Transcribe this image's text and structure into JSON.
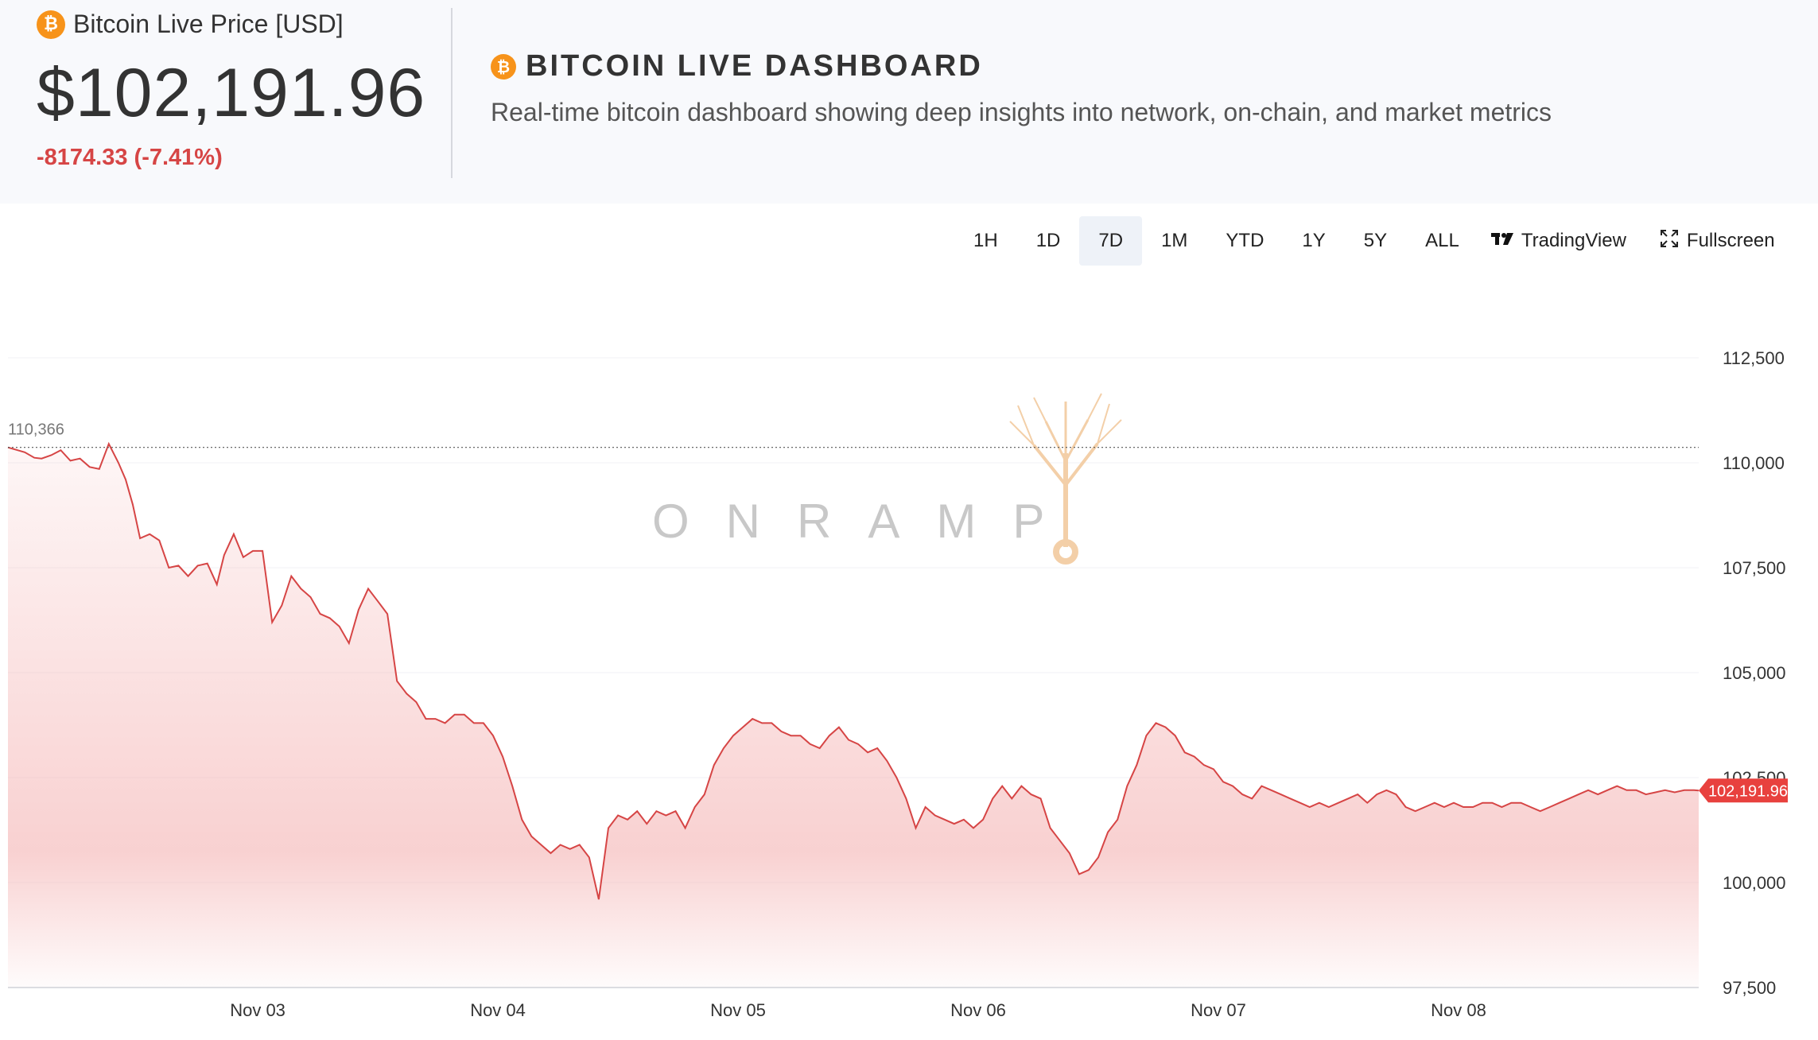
{
  "price_widget": {
    "logo_symbol": "₿",
    "title": "Bitcoin Live Price [USD]",
    "price": "$102,191.96",
    "change": "-8174.33 (-7.41%)"
  },
  "dashboard": {
    "logo_symbol": "₿",
    "title": "BITCOIN LIVE DASHBOARD",
    "subtitle": "Real-time bitcoin dashboard showing deep insights into network, on-chain, and market metrics"
  },
  "toolbar": {
    "ranges": [
      "1H",
      "1D",
      "7D",
      "1M",
      "YTD",
      "1Y",
      "5Y",
      "ALL"
    ],
    "active_range": "7D",
    "tradingview_label": "TradingView",
    "tradingview_icon": "tradingview-logo-icon",
    "fullscreen_label": "Fullscreen",
    "fullscreen_icon": "fullscreen-expand-icon"
  },
  "chart_data": {
    "type": "area",
    "title": "",
    "x_tick_labels": [
      "Nov 03",
      "Nov 04",
      "Nov 05",
      "Nov 06",
      "Nov 07",
      "Nov 08"
    ],
    "y_tick_labels": [
      "112,500",
      "110,000",
      "107,500",
      "105,000",
      "102,500",
      "100,000",
      "97,500"
    ],
    "y_ticks": [
      112500,
      110000,
      107500,
      105000,
      102500,
      100000,
      97500
    ],
    "ylim": [
      97500,
      114000
    ],
    "x_range_days": [
      -1.04,
      6.0
    ],
    "start_value": 110366,
    "start_label": "110,366",
    "last_value": 102191.96,
    "last_label": "102,191.96",
    "watermark": "ONRAMP",
    "colors": {
      "line": "#d64545",
      "up_line": "#26a69a",
      "fill": "#f5b8b8",
      "price_tag": "#e8413e",
      "watermark_tree": "#f3cfa8"
    },
    "series": [
      {
        "points": [
          [
            -1.04,
            110366
          ],
          [
            -1.0,
            110300
          ],
          [
            -0.97,
            110250
          ],
          [
            -0.93,
            110120
          ],
          [
            -0.9,
            110100
          ],
          [
            -0.86,
            110180
          ],
          [
            -0.82,
            110300
          ],
          [
            -0.78,
            110050
          ],
          [
            -0.74,
            110100
          ],
          [
            -0.7,
            109900
          ],
          [
            -0.66,
            109850
          ],
          [
            -0.62,
            110450
          ],
          [
            -0.58,
            110000
          ],
          [
            -0.55,
            109600
          ],
          [
            -0.52,
            109000
          ],
          [
            -0.49,
            108200
          ],
          [
            -0.45,
            108300
          ],
          [
            -0.41,
            108150
          ],
          [
            -0.37,
            107500
          ],
          [
            -0.33,
            107550
          ],
          [
            -0.29,
            107300
          ],
          [
            -0.25,
            107550
          ],
          [
            -0.21,
            107600
          ],
          [
            -0.17,
            107100
          ],
          [
            -0.14,
            107800
          ],
          [
            -0.1,
            108300
          ],
          [
            -0.06,
            107750
          ],
          [
            -0.02,
            107900
          ],
          [
            0.02,
            107900
          ],
          [
            0.06,
            106200
          ],
          [
            0.1,
            106600
          ],
          [
            0.14,
            107300
          ],
          [
            0.18,
            107000
          ],
          [
            0.22,
            106800
          ],
          [
            0.26,
            106400
          ],
          [
            0.3,
            106300
          ],
          [
            0.34,
            106100
          ],
          [
            0.38,
            105700
          ],
          [
            0.42,
            106500
          ],
          [
            0.46,
            107000
          ],
          [
            0.5,
            106700
          ],
          [
            0.54,
            106400
          ],
          [
            0.58,
            104800
          ],
          [
            0.62,
            104500
          ],
          [
            0.66,
            104300
          ],
          [
            0.7,
            103900
          ],
          [
            0.74,
            103900
          ],
          [
            0.78,
            103800
          ],
          [
            0.82,
            104000
          ],
          [
            0.86,
            104000
          ],
          [
            0.9,
            103800
          ],
          [
            0.94,
            103800
          ],
          [
            0.98,
            103500
          ],
          [
            1.02,
            103000
          ],
          [
            1.06,
            102300
          ],
          [
            1.1,
            101500
          ],
          [
            1.14,
            101100
          ],
          [
            1.18,
            100900
          ],
          [
            1.22,
            100700
          ],
          [
            1.26,
            100900
          ],
          [
            1.3,
            100800
          ],
          [
            1.34,
            100900
          ],
          [
            1.38,
            100600
          ],
          [
            1.42,
            99600
          ],
          [
            1.46,
            101300
          ],
          [
            1.5,
            101600
          ],
          [
            1.54,
            101500
          ],
          [
            1.58,
            101700
          ],
          [
            1.62,
            101400
          ],
          [
            1.66,
            101700
          ],
          [
            1.7,
            101600
          ],
          [
            1.74,
            101700
          ],
          [
            1.78,
            101300
          ],
          [
            1.82,
            101800
          ],
          [
            1.86,
            102100
          ],
          [
            1.9,
            102800
          ],
          [
            1.94,
            103200
          ],
          [
            1.98,
            103500
          ],
          [
            2.02,
            103700
          ],
          [
            2.06,
            103900
          ],
          [
            2.1,
            103800
          ],
          [
            2.14,
            103800
          ],
          [
            2.18,
            103600
          ],
          [
            2.22,
            103500
          ],
          [
            2.26,
            103500
          ],
          [
            2.3,
            103300
          ],
          [
            2.34,
            103200
          ],
          [
            2.38,
            103500
          ],
          [
            2.42,
            103700
          ],
          [
            2.46,
            103400
          ],
          [
            2.5,
            103300
          ],
          [
            2.54,
            103100
          ],
          [
            2.58,
            103200
          ],
          [
            2.62,
            102900
          ],
          [
            2.66,
            102500
          ],
          [
            2.7,
            102000
          ],
          [
            2.74,
            101300
          ],
          [
            2.78,
            101800
          ],
          [
            2.82,
            101600
          ],
          [
            2.86,
            101500
          ],
          [
            2.9,
            101400
          ],
          [
            2.94,
            101500
          ],
          [
            2.98,
            101300
          ],
          [
            3.02,
            101500
          ],
          [
            3.06,
            102000
          ],
          [
            3.1,
            102300
          ],
          [
            3.14,
            102000
          ],
          [
            3.18,
            102300
          ],
          [
            3.22,
            102100
          ],
          [
            3.26,
            102000
          ],
          [
            3.3,
            101300
          ],
          [
            3.34,
            101000
          ],
          [
            3.38,
            100700
          ],
          [
            3.42,
            100200
          ],
          [
            3.46,
            100300
          ],
          [
            3.5,
            100600
          ],
          [
            3.54,
            101200
          ],
          [
            3.58,
            101500
          ],
          [
            3.62,
            102300
          ],
          [
            3.66,
            102800
          ],
          [
            3.7,
            103500
          ],
          [
            3.74,
            103800
          ],
          [
            3.78,
            103700
          ],
          [
            3.82,
            103500
          ],
          [
            3.86,
            103100
          ],
          [
            3.9,
            103000
          ],
          [
            3.94,
            102800
          ],
          [
            3.98,
            102700
          ],
          [
            4.02,
            102400
          ],
          [
            4.06,
            102300
          ],
          [
            4.1,
            102100
          ],
          [
            4.14,
            102000
          ],
          [
            4.18,
            102300
          ],
          [
            4.22,
            102200
          ],
          [
            4.26,
            102100
          ],
          [
            4.3,
            102000
          ],
          [
            4.34,
            101900
          ],
          [
            4.38,
            101800
          ],
          [
            4.42,
            101900
          ],
          [
            4.46,
            101800
          ],
          [
            4.5,
            101900
          ],
          [
            4.54,
            102000
          ],
          [
            4.58,
            102100
          ],
          [
            4.62,
            101900
          ],
          [
            4.66,
            102100
          ],
          [
            4.7,
            102200
          ],
          [
            4.74,
            102100
          ],
          [
            4.78,
            101800
          ],
          [
            4.82,
            101700
          ],
          [
            4.86,
            101800
          ],
          [
            4.9,
            101900
          ],
          [
            4.94,
            101800
          ],
          [
            4.98,
            101900
          ],
          [
            5.02,
            101800
          ],
          [
            5.06,
            101800
          ],
          [
            5.1,
            101900
          ],
          [
            5.14,
            101900
          ],
          [
            5.18,
            101800
          ],
          [
            5.22,
            101900
          ],
          [
            5.26,
            101900
          ],
          [
            5.3,
            101800
          ],
          [
            5.34,
            101700
          ],
          [
            5.38,
            101800
          ],
          [
            5.42,
            101900
          ],
          [
            5.46,
            102000
          ],
          [
            5.5,
            102100
          ],
          [
            5.54,
            102200
          ],
          [
            5.58,
            102100
          ],
          [
            5.62,
            102200
          ],
          [
            5.66,
            102300
          ],
          [
            5.7,
            102200
          ],
          [
            5.74,
            102200
          ],
          [
            5.78,
            102100
          ],
          [
            5.82,
            102150
          ],
          [
            5.86,
            102200
          ],
          [
            5.9,
            102150
          ],
          [
            5.94,
            102200
          ],
          [
            5.98,
            102200
          ],
          [
            6.0,
            102191.96
          ]
        ]
      }
    ]
  }
}
